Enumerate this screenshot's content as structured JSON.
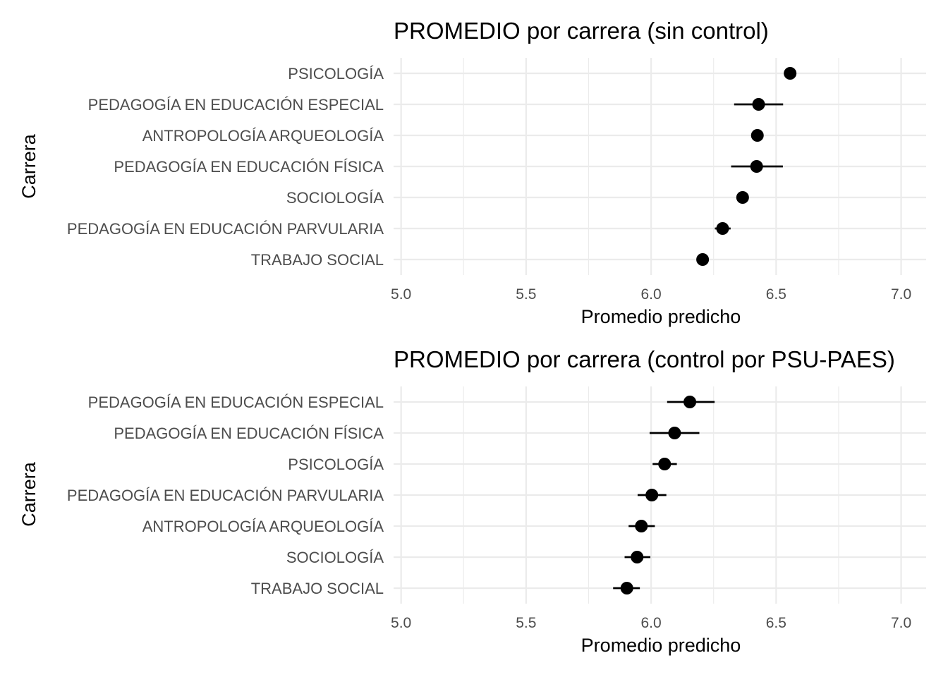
{
  "chart_data": [
    {
      "type": "scatter",
      "title": "PROMEDIO por carrera (sin control)",
      "xlabel": "Promedio predicho",
      "ylabel": "Carrera",
      "xlim": [
        4.97,
        7.1
      ],
      "xticks": [
        "5.0",
        "5.5",
        "6.0",
        "6.5",
        "7.0"
      ],
      "grid": true,
      "error_bars": true,
      "points": [
        {
          "category": "PSICOLOGÍA",
          "value": 6.556,
          "lower": 6.556,
          "upper": 6.556
        },
        {
          "category": "PEDAGOGÍA EN EDUCACIÓN ESPECIAL",
          "value": 6.43,
          "lower": 6.332,
          "upper": 6.528
        },
        {
          "category": "ANTROPOLOGÍA ARQUEOLOGÍA",
          "value": 6.425,
          "lower": 6.425,
          "upper": 6.425
        },
        {
          "category": "PEDAGOGÍA EN EDUCACIÓN FÍSICA",
          "value": 6.422,
          "lower": 6.32,
          "upper": 6.527
        },
        {
          "category": "SOCIOLOGÍA",
          "value": 6.366,
          "lower": 6.366,
          "upper": 6.366
        },
        {
          "category": "PEDAGOGÍA EN EDUCACIÓN PARVULARIA",
          "value": 6.286,
          "lower": 6.255,
          "upper": 6.318
        },
        {
          "category": "TRABAJO SOCIAL",
          "value": 6.206,
          "lower": 6.187,
          "upper": 6.225
        }
      ]
    },
    {
      "type": "scatter",
      "title": "PROMEDIO por carrera (control por PSU-PAES)",
      "xlabel": "Promedio predicho",
      "ylabel": "Carrera",
      "xlim": [
        4.97,
        7.1
      ],
      "xticks": [
        "5.0",
        "5.5",
        "6.0",
        "6.5",
        "7.0"
      ],
      "grid": true,
      "error_bars": true,
      "points": [
        {
          "category": "PEDAGOGÍA EN EDUCACIÓN ESPECIAL",
          "value": 6.155,
          "lower": 6.064,
          "upper": 6.254
        },
        {
          "category": "PEDAGOGÍA EN EDUCACIÓN FÍSICA",
          "value": 6.094,
          "lower": 5.994,
          "upper": 6.193
        },
        {
          "category": "PSICOLOGÍA",
          "value": 6.054,
          "lower": 6.006,
          "upper": 6.103
        },
        {
          "category": "PEDAGOGÍA EN EDUCACIÓN PARVULARIA",
          "value": 6.003,
          "lower": 5.946,
          "upper": 6.061
        },
        {
          "category": "ANTROPOLOGÍA ARQUEOLOGÍA",
          "value": 5.961,
          "lower": 5.91,
          "upper": 6.015
        },
        {
          "category": "SOCIOLOGÍA",
          "value": 5.944,
          "lower": 5.894,
          "upper": 5.997
        },
        {
          "category": "TRABAJO SOCIAL",
          "value": 5.903,
          "lower": 5.848,
          "upper": 5.955
        }
      ]
    }
  ]
}
